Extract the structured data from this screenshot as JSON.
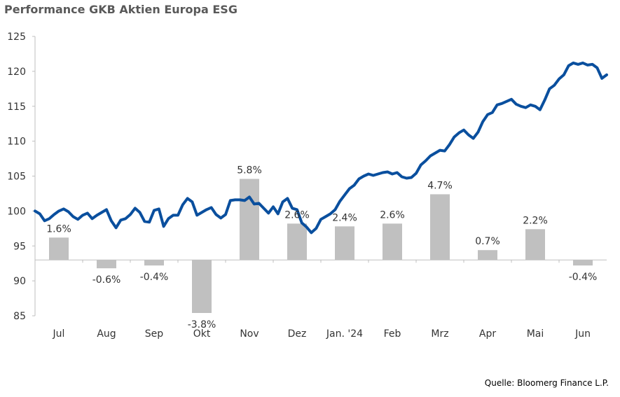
{
  "title": "Performance GKB Aktien Europa ESG",
  "source": "Quelle: Bloomerg Finance L.P.",
  "colors": {
    "line": "#0a4f9e",
    "bar": "#c0c0c0",
    "axis": "#bfbfbf",
    "text": "#333333",
    "title": "#595959"
  },
  "chart_data": {
    "type": "bar+line",
    "title": "Performance GKB Aktien Europa ESG",
    "xlabel": "",
    "ylabel": "",
    "ylim": [
      85,
      125
    ],
    "yticks": [
      85,
      90,
      95,
      100,
      105,
      110,
      115,
      120,
      125
    ],
    "grid": false,
    "legend": "none",
    "categories": [
      "Jul",
      "Aug",
      "Sep",
      "Okt",
      "Nov",
      "Dez",
      "Jan. '24",
      "Feb",
      "Mrz",
      "Apr",
      "Mai",
      "Jun"
    ],
    "bars": {
      "values": [
        1.6,
        -0.6,
        -0.4,
        -3.8,
        5.8,
        2.6,
        2.4,
        2.6,
        4.7,
        0.7,
        2.2,
        -0.4
      ],
      "labels": [
        "1.6%",
        "-0.6%",
        "-0.4%",
        "-3.8%",
        "5.8%",
        "2.6%",
        "2.4%",
        "2.6%",
        "4.7%",
        "0.7%",
        "2.2%",
        "-0.4%"
      ],
      "note": "monthly return bars drawn on the index scale around base 93"
    },
    "line": {
      "x_months": [
        0.0,
        0.1,
        0.2,
        0.3,
        0.4,
        0.5,
        0.6,
        0.7,
        0.8,
        0.9,
        1.0,
        1.1,
        1.2,
        1.3,
        1.4,
        1.5,
        1.6,
        1.7,
        1.8,
        1.9,
        2.0,
        2.1,
        2.2,
        2.3,
        2.4,
        2.5,
        2.6,
        2.7,
        2.8,
        2.9,
        3.0,
        3.1,
        3.2,
        3.3,
        3.4,
        3.5,
        3.6,
        3.7,
        3.8,
        3.9,
        4.0,
        4.1,
        4.2,
        4.3,
        4.4,
        4.5,
        4.6,
        4.7,
        4.8,
        4.9,
        5.0,
        5.1,
        5.2,
        5.3,
        5.4,
        5.5,
        5.6,
        5.7,
        5.8,
        5.9,
        6.0,
        6.1,
        6.2,
        6.3,
        6.4,
        6.5,
        6.6,
        6.7,
        6.8,
        6.9,
        7.0,
        7.1,
        7.2,
        7.3,
        7.4,
        7.5,
        7.6,
        7.7,
        7.8,
        7.9,
        8.0,
        8.1,
        8.2,
        8.3,
        8.4,
        8.5,
        8.6,
        8.7,
        8.8,
        8.9,
        9.0,
        9.1,
        9.2,
        9.3,
        9.4,
        9.5,
        9.6,
        9.7,
        9.8,
        9.9,
        10.0,
        10.1,
        10.2,
        10.3,
        10.4,
        10.5,
        10.6,
        10.7,
        10.8,
        10.9,
        11.0,
        11.1,
        11.2,
        11.3,
        11.4,
        11.5,
        11.6,
        11.7,
        11.8,
        11.9,
        12.0
      ],
      "values": [
        100.0,
        99.6,
        98.6,
        98.9,
        99.5,
        100.0,
        100.3,
        99.9,
        99.2,
        98.8,
        99.4,
        99.7,
        98.9,
        99.4,
        99.8,
        100.2,
        98.6,
        97.6,
        98.7,
        98.9,
        99.5,
        100.4,
        99.8,
        98.5,
        98.4,
        100.1,
        100.3,
        97.8,
        98.9,
        99.4,
        99.4,
        100.9,
        101.8,
        101.3,
        99.4,
        99.8,
        100.2,
        100.5,
        99.5,
        99.0,
        99.5,
        101.5,
        101.6,
        101.6,
        101.5,
        102.0,
        101.0,
        101.1,
        100.4,
        99.7,
        100.6,
        99.6,
        101.3,
        101.8,
        100.4,
        100.2,
        98.3,
        97.7,
        96.9,
        97.5,
        98.8,
        99.2,
        99.6,
        100.2,
        101.4,
        102.3,
        103.2,
        103.7,
        104.6,
        105.0,
        105.3,
        105.1,
        105.3,
        105.5,
        105.6,
        105.3,
        105.5,
        104.9,
        104.7,
        104.8,
        105.4,
        106.6,
        107.2,
        107.9,
        108.3,
        108.7,
        108.6,
        109.5,
        110.6,
        111.2,
        111.6,
        110.9,
        110.4,
        111.3,
        112.8,
        113.8,
        114.1,
        115.2,
        115.4,
        115.7,
        116.0,
        115.3,
        115.0,
        114.8,
        115.2,
        115.0,
        114.5,
        115.9,
        117.5,
        118.0,
        118.9,
        119.5,
        120.8,
        121.2,
        121.0,
        121.2,
        120.9,
        121.0,
        120.5,
        119.0,
        119.5
      ]
    }
  }
}
